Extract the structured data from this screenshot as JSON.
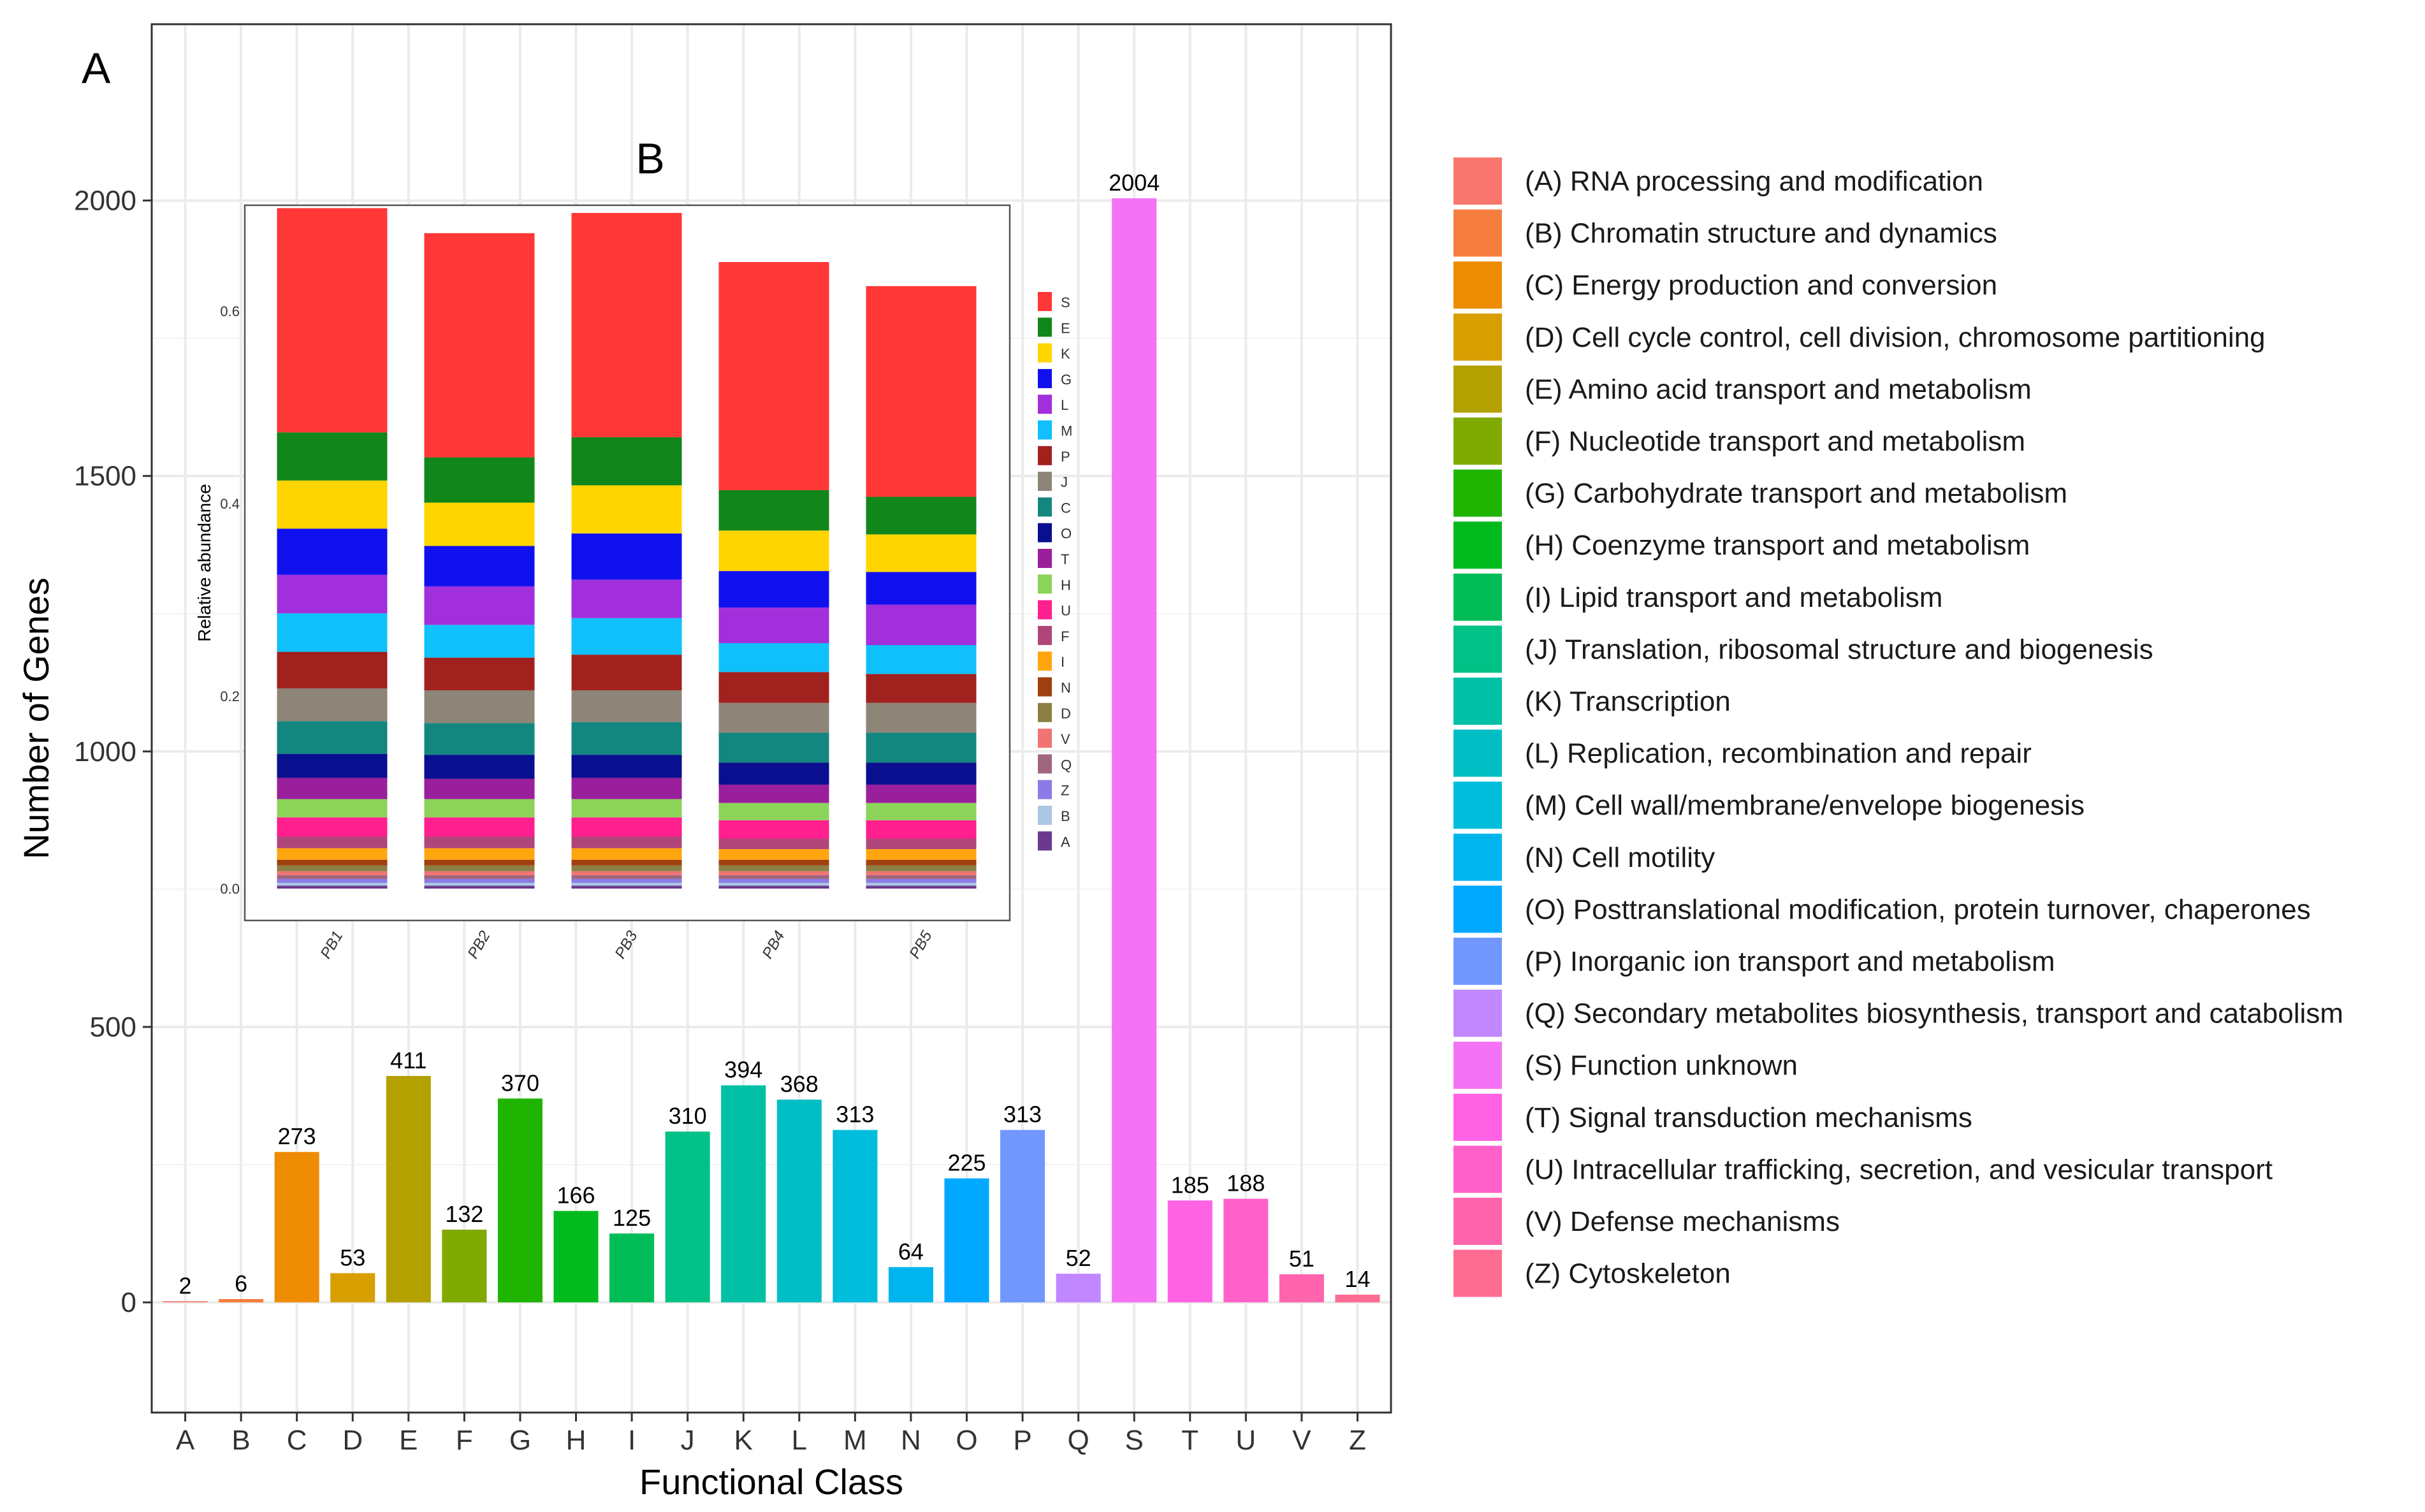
{
  "chart_data": [
    {
      "type": "bar",
      "panel_label": "A",
      "xlabel": "Functional Class",
      "ylabel": "Number of Genes",
      "ylim": [
        -200,
        2320
      ],
      "yticks": [
        0,
        500,
        1000,
        1500,
        2000
      ],
      "grid": true,
      "categories": [
        "A",
        "B",
        "C",
        "D",
        "E",
        "F",
        "G",
        "H",
        "I",
        "J",
        "K",
        "L",
        "M",
        "N",
        "O",
        "P",
        "Q",
        "S",
        "T",
        "U",
        "V",
        "Z"
      ],
      "values": [
        2,
        6,
        273,
        53,
        411,
        132,
        370,
        166,
        125,
        310,
        394,
        368,
        313,
        64,
        225,
        313,
        52,
        2004,
        185,
        188,
        51,
        14
      ],
      "colors": [
        "#F8766D",
        "#F57E3F",
        "#EE8C04",
        "#D89F00",
        "#B3A100",
        "#80AA00",
        "#1EB400",
        "#00BA1E",
        "#00BD58",
        "#00C186",
        "#00C0A6",
        "#00BEC3",
        "#00BEDB",
        "#00B5EE",
        "#00A9FF",
        "#7197FF",
        "#C187FF",
        "#F473F4",
        "#FF63E3",
        "#FF61C9",
        "#FF65AC",
        "#FF6C91"
      ]
    },
    {
      "type": "stacked_bar",
      "panel_label": "B",
      "ylabel": "Relative abundance",
      "ylim": [
        0,
        0.71
      ],
      "yticks": [
        "0.0",
        "0.2",
        "0.4",
        "0.6"
      ],
      "categories": [
        "PB1",
        "PB2",
        "PB3",
        "PB4",
        "PB5"
      ],
      "stack_order_bottom_to_top": [
        "A",
        "B",
        "Z",
        "Q",
        "V",
        "D",
        "N",
        "I",
        "F",
        "U",
        "H",
        "T",
        "O",
        "C",
        "J",
        "P",
        "M",
        "L",
        "G",
        "K",
        "E",
        "S"
      ],
      "series": [
        {
          "name": "A",
          "color": "#6B3A8E",
          "values": [
            0.003,
            0.003,
            0.003,
            0.003,
            0.003
          ]
        },
        {
          "name": "B",
          "color": "#A9C6E2",
          "values": [
            0.003,
            0.003,
            0.003,
            0.003,
            0.003
          ]
        },
        {
          "name": "Z",
          "color": "#8C7BE6",
          "values": [
            0.004,
            0.004,
            0.004,
            0.004,
            0.004
          ]
        },
        {
          "name": "Q",
          "color": "#A0667E",
          "values": [
            0.004,
            0.004,
            0.004,
            0.004,
            0.004
          ]
        },
        {
          "name": "V",
          "color": "#F07473",
          "values": [
            0.004,
            0.004,
            0.004,
            0.004,
            0.004
          ]
        },
        {
          "name": "D",
          "color": "#8C7F45",
          "values": [
            0.006,
            0.006,
            0.006,
            0.006,
            0.006
          ]
        },
        {
          "name": "N",
          "color": "#A0400F",
          "values": [
            0.006,
            0.006,
            0.006,
            0.006,
            0.006
          ]
        },
        {
          "name": "I",
          "color": "#FFA60F",
          "values": [
            0.012,
            0.012,
            0.012,
            0.011,
            0.011
          ]
        },
        {
          "name": "F",
          "color": "#B0457A",
          "values": [
            0.012,
            0.012,
            0.012,
            0.011,
            0.011
          ]
        },
        {
          "name": "U",
          "color": "#FF1F8E",
          "values": [
            0.02,
            0.02,
            0.02,
            0.019,
            0.019
          ]
        },
        {
          "name": "H",
          "color": "#8CD35A",
          "values": [
            0.019,
            0.019,
            0.019,
            0.018,
            0.018
          ]
        },
        {
          "name": "T",
          "color": "#9A1F9C",
          "values": [
            0.022,
            0.021,
            0.022,
            0.019,
            0.019
          ]
        },
        {
          "name": "O",
          "color": "#0A0F8F",
          "values": [
            0.025,
            0.025,
            0.024,
            0.023,
            0.023
          ]
        },
        {
          "name": "C",
          "color": "#13877F",
          "values": [
            0.034,
            0.033,
            0.034,
            0.031,
            0.031
          ]
        },
        {
          "name": "J",
          "color": "#8D8578",
          "values": [
            0.034,
            0.034,
            0.033,
            0.031,
            0.031
          ]
        },
        {
          "name": "P",
          "color": "#A0211E",
          "values": [
            0.038,
            0.034,
            0.037,
            0.032,
            0.03
          ]
        },
        {
          "name": "M",
          "color": "#10C0FA",
          "values": [
            0.04,
            0.034,
            0.038,
            0.03,
            0.03
          ]
        },
        {
          "name": "L",
          "color": "#A12FDC",
          "values": [
            0.04,
            0.04,
            0.04,
            0.037,
            0.042
          ]
        },
        {
          "name": "G",
          "color": "#1010EE",
          "values": [
            0.048,
            0.042,
            0.048,
            0.038,
            0.034
          ]
        },
        {
          "name": "K",
          "color": "#FFD500",
          "values": [
            0.05,
            0.045,
            0.05,
            0.042,
            0.039
          ]
        },
        {
          "name": "E",
          "color": "#11861A",
          "values": [
            0.05,
            0.047,
            0.05,
            0.042,
            0.039
          ]
        },
        {
          "name": "S",
          "color": "#FF3737",
          "values": [
            0.233,
            0.233,
            0.233,
            0.237,
            0.219
          ]
        }
      ],
      "legend_order": [
        "S",
        "E",
        "K",
        "G",
        "L",
        "M",
        "P",
        "J",
        "C",
        "O",
        "T",
        "H",
        "U",
        "F",
        "I",
        "N",
        "D",
        "V",
        "Q",
        "Z",
        "B",
        "A"
      ]
    }
  ],
  "legend": [
    "(A) RNA processing and modification",
    "(B) Chromatin structure and dynamics",
    "(C) Energy production and conversion",
    "(D) Cell cycle control, cell division, chromosome partitioning",
    "(E) Amino acid transport and metabolism",
    "(F) Nucleotide transport and metabolism",
    "(G) Carbohydrate transport and metabolism",
    "(H) Coenzyme transport and metabolism",
    "(I) Lipid transport and metabolism",
    "(J) Translation, ribosomal structure and biogenesis",
    "(K) Transcription",
    "(L) Replication, recombination and repair",
    "(M) Cell wall/membrane/envelope biogenesis",
    "(N) Cell motility",
    "(O) Posttranslational modification, protein turnover, chaperones",
    "(P) Inorganic ion transport and metabolism",
    "(Q) Secondary metabolites biosynthesis, transport and catabolism",
    "(S) Function unknown",
    "(T) Signal transduction mechanisms",
    "(U) Intracellular trafficking, secretion, and vesicular transport",
    "(V) Defense mechanisms",
    "(Z) Cytoskeleton"
  ]
}
